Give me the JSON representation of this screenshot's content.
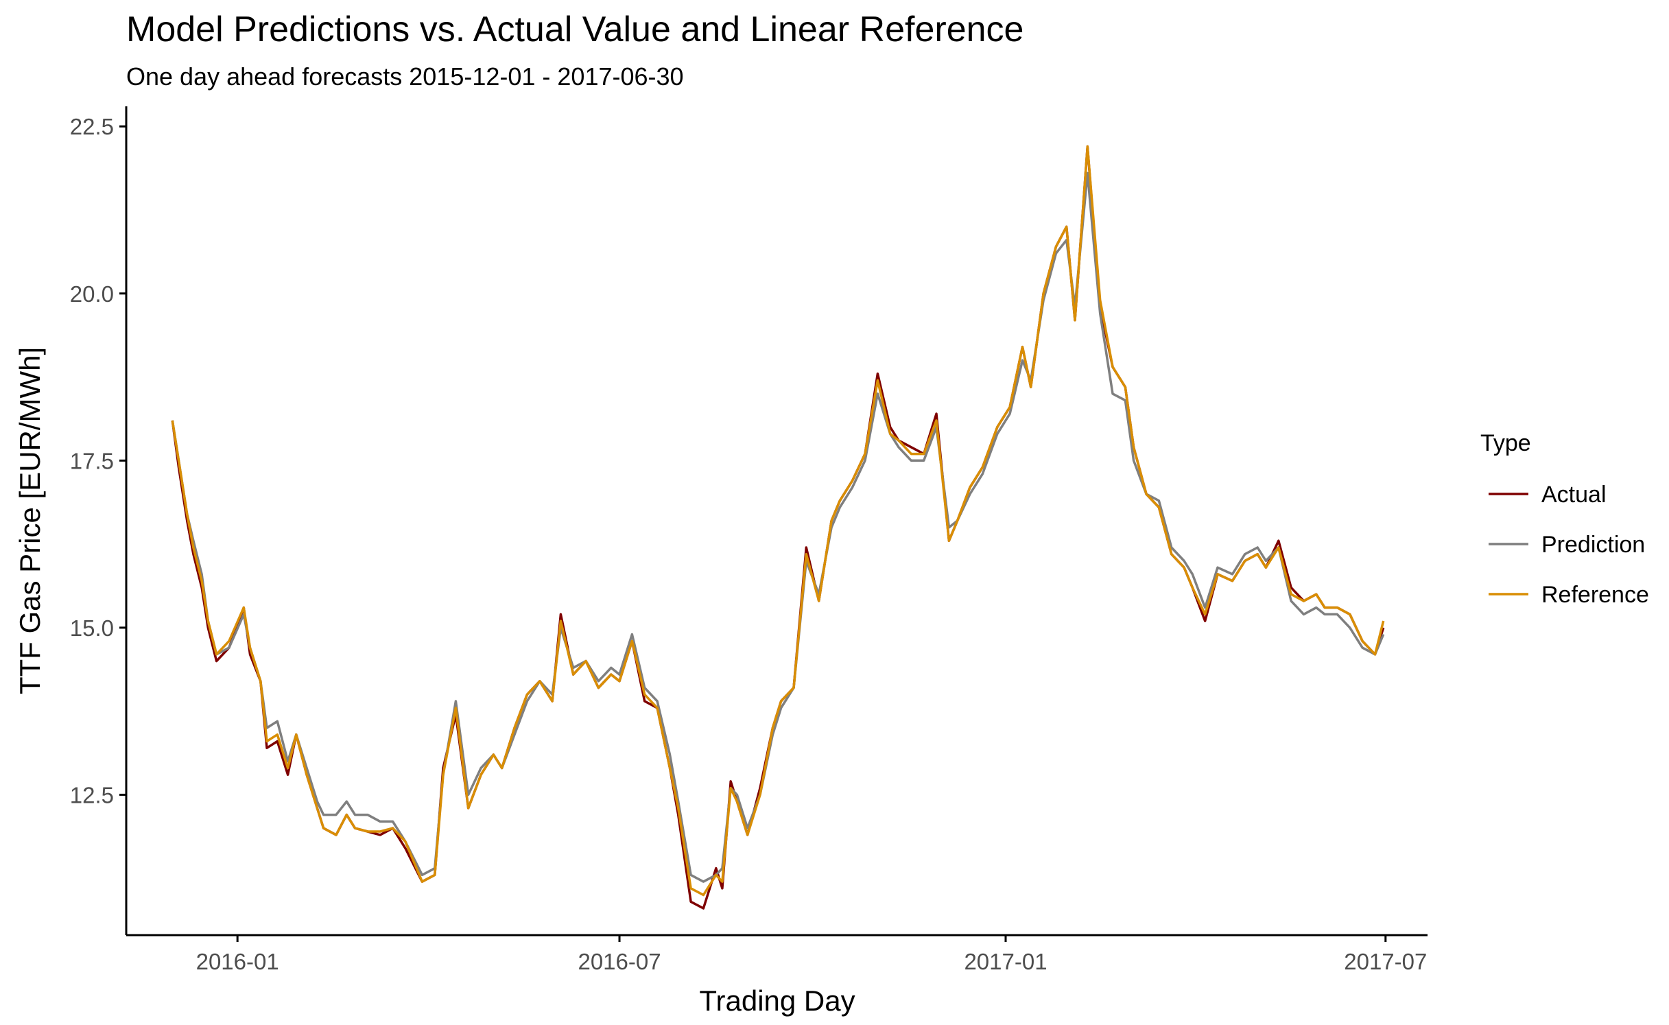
{
  "chart_data": {
    "type": "line",
    "title": "Model Predictions vs. Actual Value and Linear Reference",
    "subtitle": "One day ahead forecasts 2015-12-01 - 2017-06-30",
    "xlabel": "Trading Day",
    "ylabel": "TTF Gas Price [EUR/MWh]",
    "x_ticks": [
      {
        "date": "2016-01-01",
        "label": "2016-01"
      },
      {
        "date": "2016-07-01",
        "label": "2016-07"
      },
      {
        "date": "2017-01-01",
        "label": "2017-01"
      },
      {
        "date": "2017-07-01",
        "label": "2017-07"
      }
    ],
    "y_ticks": [
      12.5,
      15.0,
      17.5,
      20.0,
      22.5
    ],
    "xlim": [
      "2015-11-09",
      "2017-07-21"
    ],
    "ylim": [
      10.4,
      22.8
    ],
    "grid": false,
    "legend": {
      "title": "Type",
      "position": "right"
    },
    "x": [
      "2015-12-01",
      "2015-12-04",
      "2015-12-08",
      "2015-12-11",
      "2015-12-15",
      "2015-12-18",
      "2015-12-22",
      "2015-12-28",
      "2016-01-04",
      "2016-01-07",
      "2016-01-12",
      "2016-01-15",
      "2016-01-20",
      "2016-01-25",
      "2016-01-29",
      "2016-02-03",
      "2016-02-08",
      "2016-02-11",
      "2016-02-17",
      "2016-02-22",
      "2016-02-26",
      "2016-03-03",
      "2016-03-09",
      "2016-03-15",
      "2016-03-21",
      "2016-03-29",
      "2016-04-04",
      "2016-04-08",
      "2016-04-14",
      "2016-04-20",
      "2016-04-26",
      "2016-05-02",
      "2016-05-06",
      "2016-05-12",
      "2016-05-18",
      "2016-05-24",
      "2016-05-30",
      "2016-06-03",
      "2016-06-09",
      "2016-06-15",
      "2016-06-21",
      "2016-06-27",
      "2016-07-01",
      "2016-07-07",
      "2016-07-13",
      "2016-07-19",
      "2016-07-25",
      "2016-07-29",
      "2016-08-04",
      "2016-08-10",
      "2016-08-16",
      "2016-08-19",
      "2016-08-23",
      "2016-08-26",
      "2016-08-31",
      "2016-09-06",
      "2016-09-12",
      "2016-09-16",
      "2016-09-22",
      "2016-09-28",
      "2016-10-04",
      "2016-10-10",
      "2016-10-14",
      "2016-10-20",
      "2016-10-26",
      "2016-11-01",
      "2016-11-07",
      "2016-11-11",
      "2016-11-17",
      "2016-11-23",
      "2016-11-29",
      "2016-12-05",
      "2016-12-09",
      "2016-12-15",
      "2016-12-21",
      "2016-12-28",
      "2017-01-03",
      "2017-01-09",
      "2017-01-13",
      "2017-01-19",
      "2017-01-25",
      "2017-01-30",
      "2017-02-03",
      "2017-02-09",
      "2017-02-15",
      "2017-02-21",
      "2017-02-27",
      "2017-03-03",
      "2017-03-09",
      "2017-03-15",
      "2017-03-21",
      "2017-03-27",
      "2017-03-31",
      "2017-04-06",
      "2017-04-12",
      "2017-04-19",
      "2017-04-25",
      "2017-05-01",
      "2017-05-05",
      "2017-05-11",
      "2017-05-17",
      "2017-05-23",
      "2017-05-29",
      "2017-06-02",
      "2017-06-08",
      "2017-06-14",
      "2017-06-20",
      "2017-06-26",
      "2017-06-30"
    ],
    "series": [
      {
        "name": "Actual",
        "color": "#7f0000",
        "values": [
          18.1,
          17.4,
          16.6,
          16.1,
          15.6,
          15.0,
          14.5,
          14.7,
          15.3,
          14.6,
          14.2,
          13.2,
          13.3,
          12.8,
          13.4,
          12.8,
          12.3,
          12.0,
          11.9,
          12.2,
          12.0,
          11.95,
          11.9,
          12.0,
          11.7,
          11.2,
          11.3,
          12.9,
          13.7,
          12.3,
          12.8,
          13.1,
          12.9,
          13.5,
          14.0,
          14.2,
          13.9,
          15.2,
          14.3,
          14.5,
          14.1,
          14.3,
          14.2,
          14.8,
          13.9,
          13.8,
          12.9,
          12.2,
          10.9,
          10.8,
          11.4,
          11.1,
          12.7,
          12.4,
          11.9,
          12.6,
          13.5,
          13.9,
          14.1,
          16.2,
          15.4,
          16.6,
          16.9,
          17.2,
          17.6,
          18.8,
          18.0,
          17.8,
          17.7,
          17.6,
          18.2,
          16.3,
          16.6,
          17.1,
          17.4,
          18.0,
          18.3,
          19.2,
          18.6,
          20.0,
          20.7,
          21.0,
          19.6,
          22.2,
          19.8,
          18.9,
          18.6,
          17.7,
          17.0,
          16.8,
          16.1,
          15.9,
          15.6,
          15.1,
          15.8,
          15.7,
          16.0,
          16.1,
          15.9,
          16.3,
          15.6,
          15.4,
          15.5,
          15.3,
          15.3,
          15.2,
          14.8,
          14.6,
          15.0
        ]
      },
      {
        "name": "Prediction",
        "color": "#7f7f7f",
        "values": [
          18.1,
          17.5,
          16.7,
          16.3,
          15.8,
          15.1,
          14.6,
          14.7,
          15.2,
          14.7,
          14.2,
          13.5,
          13.6,
          13.0,
          13.4,
          12.9,
          12.4,
          12.2,
          12.2,
          12.4,
          12.2,
          12.2,
          12.1,
          12.1,
          11.8,
          11.3,
          11.4,
          12.8,
          13.9,
          12.5,
          12.9,
          13.1,
          12.9,
          13.4,
          13.9,
          14.2,
          14.0,
          15.0,
          14.4,
          14.5,
          14.2,
          14.4,
          14.3,
          14.9,
          14.1,
          13.9,
          13.1,
          12.4,
          11.3,
          11.2,
          11.3,
          11.4,
          12.6,
          12.5,
          12.0,
          12.5,
          13.4,
          13.8,
          14.1,
          16.0,
          15.5,
          16.5,
          16.8,
          17.1,
          17.5,
          18.5,
          17.9,
          17.7,
          17.5,
          17.5,
          18.0,
          16.5,
          16.6,
          17.0,
          17.3,
          17.9,
          18.2,
          19.0,
          18.7,
          19.9,
          20.6,
          20.8,
          19.8,
          21.8,
          19.7,
          18.5,
          18.4,
          17.5,
          17.0,
          16.9,
          16.2,
          16.0,
          15.8,
          15.3,
          15.9,
          15.8,
          16.1,
          16.2,
          16.0,
          16.2,
          15.4,
          15.2,
          15.3,
          15.2,
          15.2,
          15.0,
          14.7,
          14.6,
          14.9
        ]
      },
      {
        "name": "Reference",
        "color": "#d98e04",
        "values": [
          18.1,
          17.5,
          16.7,
          16.2,
          15.7,
          15.1,
          14.6,
          14.8,
          15.3,
          14.7,
          14.2,
          13.3,
          13.4,
          12.9,
          13.4,
          12.8,
          12.3,
          12.0,
          11.9,
          12.2,
          12.0,
          11.95,
          11.95,
          12.0,
          11.8,
          11.2,
          11.3,
          12.8,
          13.8,
          12.3,
          12.8,
          13.1,
          12.9,
          13.5,
          14.0,
          14.2,
          13.9,
          15.1,
          14.3,
          14.5,
          14.1,
          14.3,
          14.2,
          14.8,
          14.0,
          13.8,
          12.9,
          12.3,
          11.1,
          11.0,
          11.3,
          11.2,
          12.6,
          12.4,
          11.9,
          12.5,
          13.5,
          13.9,
          14.1,
          16.1,
          15.4,
          16.6,
          16.9,
          17.2,
          17.6,
          18.7,
          17.9,
          17.8,
          17.6,
          17.6,
          18.1,
          16.3,
          16.6,
          17.1,
          17.4,
          18.0,
          18.3,
          19.2,
          18.6,
          20.0,
          20.7,
          21.0,
          19.6,
          22.2,
          19.9,
          18.9,
          18.6,
          17.7,
          17.0,
          16.8,
          16.1,
          15.9,
          15.6,
          15.2,
          15.8,
          15.7,
          16.0,
          16.1,
          15.9,
          16.2,
          15.5,
          15.4,
          15.5,
          15.3,
          15.3,
          15.2,
          14.8,
          14.6,
          15.1
        ]
      }
    ]
  }
}
